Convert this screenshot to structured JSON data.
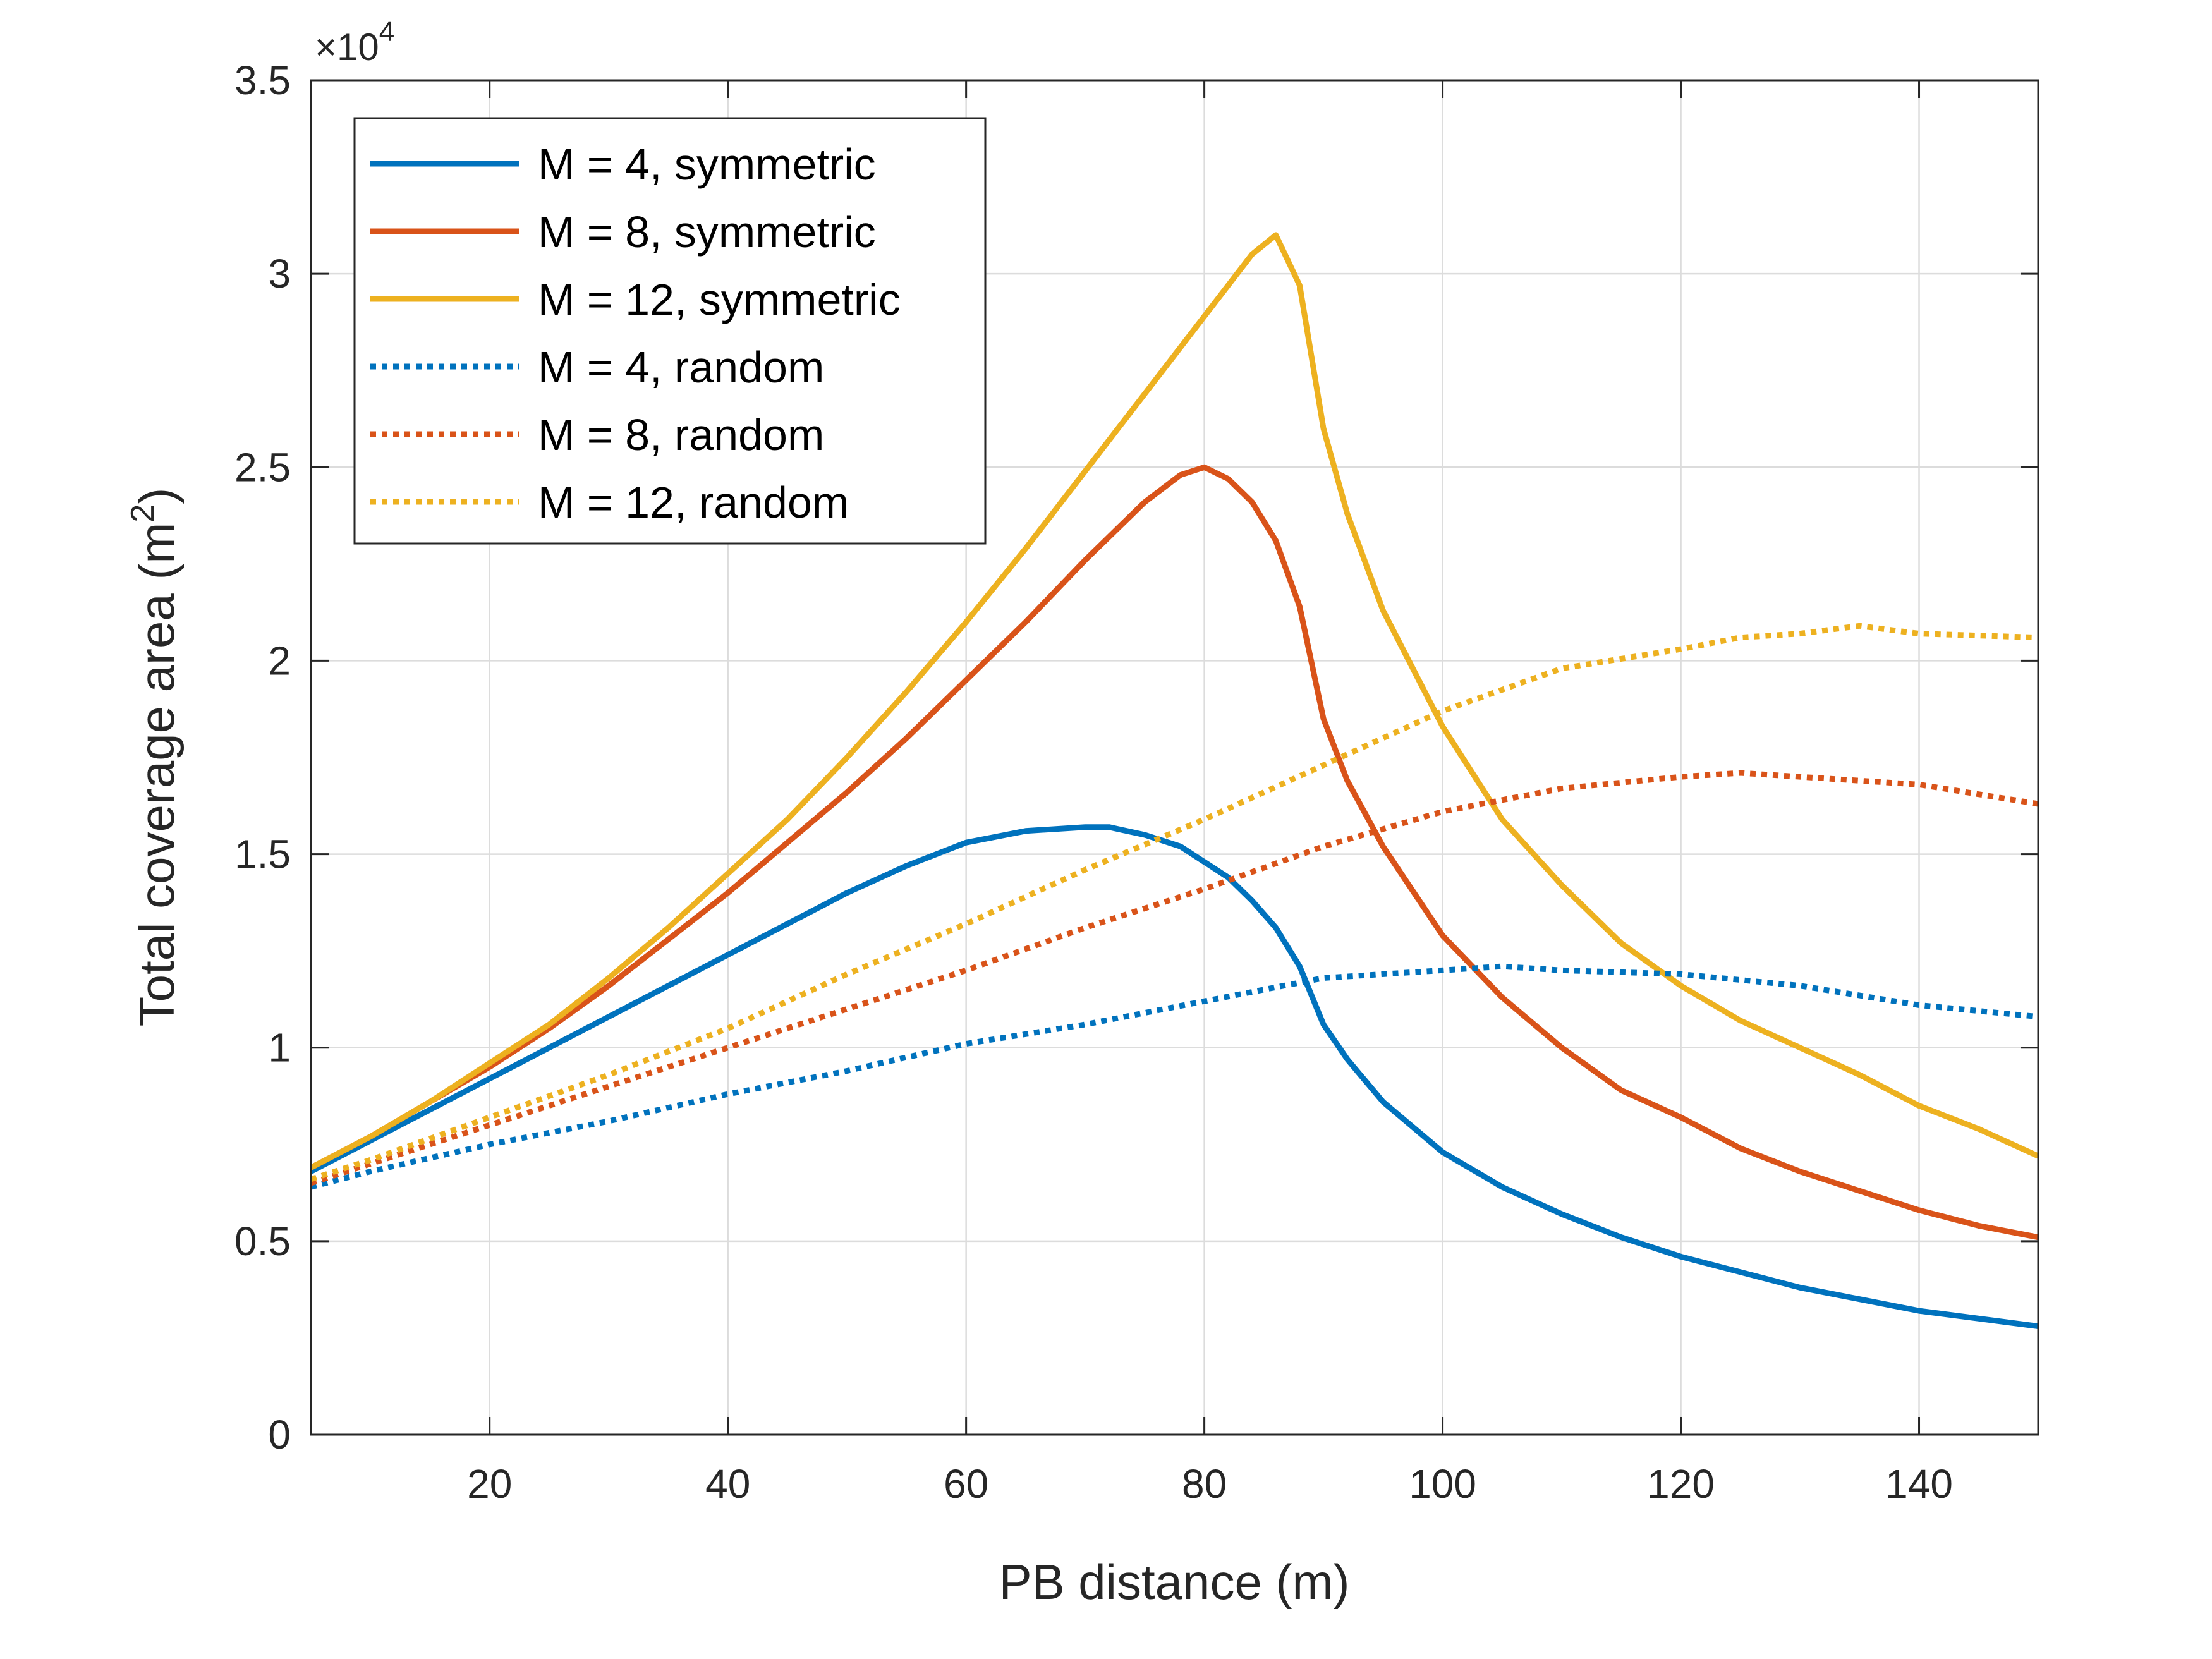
{
  "chart_data": {
    "type": "line",
    "xlabel": "PB distance (m)",
    "ylabel": "Total coverage area (m",
    "ylabel_sup": "2",
    "ylabel_close": ")",
    "y_multiplier_prefix": "×10",
    "y_multiplier_exp": "4",
    "xlim": [
      5,
      150
    ],
    "ylim": [
      0,
      3.5
    ],
    "xticks": [
      20,
      40,
      60,
      80,
      100,
      120,
      140
    ],
    "xtick_labels": [
      "20",
      "40",
      "60",
      "80",
      "100",
      "120",
      "140"
    ],
    "yticks": [
      0,
      0.5,
      1,
      1.5,
      2,
      2.5,
      3,
      3.5
    ],
    "ytick_labels": [
      "0",
      "0.5",
      "1",
      "1.5",
      "2",
      "2.5",
      "3",
      "3.5"
    ],
    "grid": true,
    "legend_position": "top-left",
    "series": [
      {
        "name": "M = 4, symmetric",
        "color": "#0072BD",
        "style": "solid",
        "x": [
          5,
          10,
          15,
          20,
          25,
          30,
          35,
          40,
          45,
          50,
          55,
          60,
          65,
          70,
          72,
          75,
          78,
          80,
          82,
          84,
          86,
          88,
          90,
          92,
          95,
          100,
          105,
          110,
          115,
          120,
          125,
          130,
          135,
          140,
          145,
          150
        ],
        "y": [
          0.68,
          0.76,
          0.84,
          0.92,
          1.0,
          1.08,
          1.16,
          1.24,
          1.32,
          1.4,
          1.47,
          1.53,
          1.56,
          1.57,
          1.57,
          1.55,
          1.52,
          1.48,
          1.44,
          1.38,
          1.31,
          1.21,
          1.06,
          0.97,
          0.86,
          0.73,
          0.64,
          0.57,
          0.51,
          0.46,
          0.42,
          0.38,
          0.35,
          0.32,
          0.3,
          0.28
        ]
      },
      {
        "name": "M = 8, symmetric",
        "color": "#D95319",
        "style": "solid",
        "x": [
          5,
          10,
          15,
          20,
          25,
          30,
          35,
          40,
          45,
          50,
          55,
          60,
          65,
          70,
          75,
          78,
          80,
          82,
          84,
          86,
          88,
          90,
          92,
          95,
          100,
          105,
          110,
          115,
          120,
          125,
          130,
          135,
          140,
          145,
          150
        ],
        "y": [
          0.69,
          0.77,
          0.86,
          0.95,
          1.05,
          1.16,
          1.28,
          1.4,
          1.53,
          1.66,
          1.8,
          1.95,
          2.1,
          2.26,
          2.41,
          2.48,
          2.5,
          2.47,
          2.41,
          2.31,
          2.14,
          1.85,
          1.69,
          1.52,
          1.29,
          1.13,
          1.0,
          0.89,
          0.82,
          0.74,
          0.68,
          0.63,
          0.58,
          0.54,
          0.51
        ]
      },
      {
        "name": "M = 12, symmetric",
        "color": "#EDB120",
        "style": "solid",
        "x": [
          5,
          10,
          15,
          20,
          25,
          30,
          35,
          40,
          45,
          50,
          55,
          60,
          65,
          70,
          75,
          80,
          84,
          86,
          88,
          90,
          92,
          95,
          100,
          105,
          110,
          115,
          120,
          125,
          130,
          135,
          140,
          145,
          150
        ],
        "y": [
          0.69,
          0.77,
          0.86,
          0.96,
          1.06,
          1.18,
          1.31,
          1.45,
          1.59,
          1.75,
          1.92,
          2.1,
          2.29,
          2.49,
          2.69,
          2.89,
          3.05,
          3.1,
          2.97,
          2.6,
          2.38,
          2.13,
          1.83,
          1.59,
          1.42,
          1.27,
          1.16,
          1.07,
          1.0,
          0.93,
          0.85,
          0.79,
          0.72
        ]
      },
      {
        "name": "M = 4, random",
        "color": "#0072BD",
        "style": "dotted",
        "x": [
          5,
          10,
          20,
          30,
          40,
          50,
          60,
          70,
          80,
          90,
          100,
          105,
          110,
          120,
          130,
          140,
          150
        ],
        "y": [
          0.64,
          0.68,
          0.75,
          0.81,
          0.88,
          0.94,
          1.01,
          1.06,
          1.12,
          1.18,
          1.2,
          1.21,
          1.2,
          1.19,
          1.16,
          1.11,
          1.08
        ]
      },
      {
        "name": "M = 8, random",
        "color": "#D95319",
        "style": "dotted",
        "x": [
          5,
          10,
          20,
          30,
          40,
          50,
          60,
          70,
          80,
          90,
          100,
          110,
          120,
          125,
          130,
          140,
          150
        ],
        "y": [
          0.65,
          0.7,
          0.8,
          0.9,
          1.0,
          1.1,
          1.2,
          1.31,
          1.41,
          1.52,
          1.61,
          1.67,
          1.7,
          1.71,
          1.7,
          1.68,
          1.63
        ]
      },
      {
        "name": "M = 12, random",
        "color": "#EDB120",
        "style": "dotted",
        "x": [
          5,
          10,
          20,
          30,
          40,
          50,
          60,
          70,
          80,
          90,
          100,
          110,
          120,
          125,
          130,
          135,
          140,
          150
        ],
        "y": [
          0.66,
          0.71,
          0.82,
          0.93,
          1.05,
          1.19,
          1.32,
          1.46,
          1.59,
          1.73,
          1.87,
          1.98,
          2.03,
          2.06,
          2.07,
          2.09,
          2.07,
          2.06
        ]
      }
    ]
  }
}
